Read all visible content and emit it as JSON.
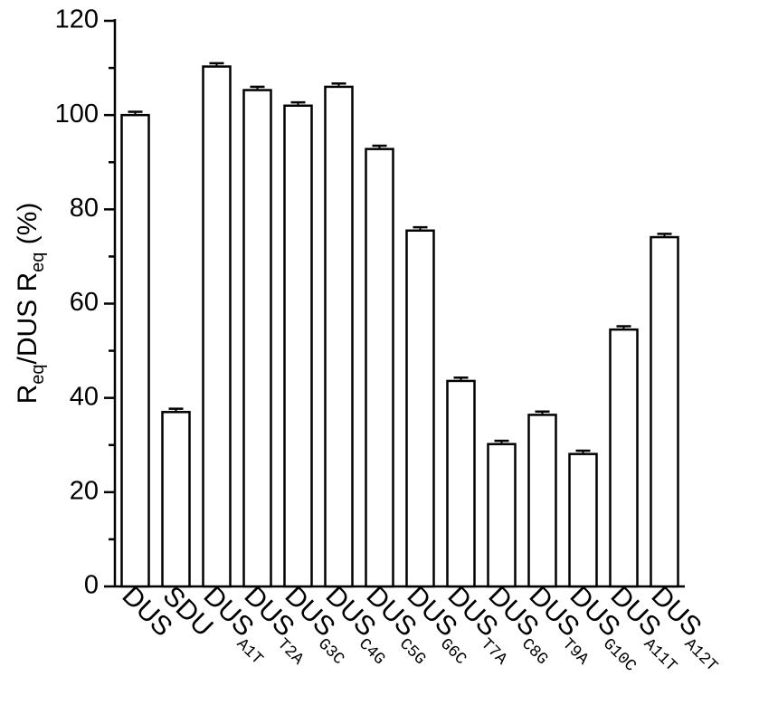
{
  "chart_data": {
    "type": "bar",
    "y_label_parts": [
      "R",
      "eq",
      "/DUS R",
      "eq",
      " (%)"
    ],
    "categories": [
      "DUS",
      "SDU",
      "DUS",
      "DUS",
      "DUS",
      "DUS",
      "DUS",
      "DUS",
      "DUS",
      "DUS",
      "DUS",
      "DUS",
      "DUS",
      "DUS"
    ],
    "category_subscripts": [
      null,
      null,
      "A1T",
      "T2A",
      "G3C",
      "C4G",
      "C5G",
      "G6C",
      "T7A",
      "C8G",
      "T9A",
      "G10C",
      "A11T",
      "A12T"
    ],
    "values": [
      100,
      37,
      110.3,
      105.3,
      102,
      106,
      92.8,
      75.5,
      43.6,
      30.2,
      36.4,
      28.1,
      54.5,
      74.1
    ],
    "errors": [
      0.7,
      0.7,
      0.7,
      0.7,
      0.7,
      0.7,
      0.7,
      0.7,
      0.7,
      0.7,
      0.7,
      0.7,
      0.7,
      0.7
    ],
    "color": "#ffffff",
    "ylim": [
      0,
      120
    ],
    "yticks": [
      0,
      20,
      40,
      60,
      80,
      100,
      120
    ],
    "minor_yticks": [
      10,
      30,
      50,
      70,
      90,
      110
    ]
  }
}
